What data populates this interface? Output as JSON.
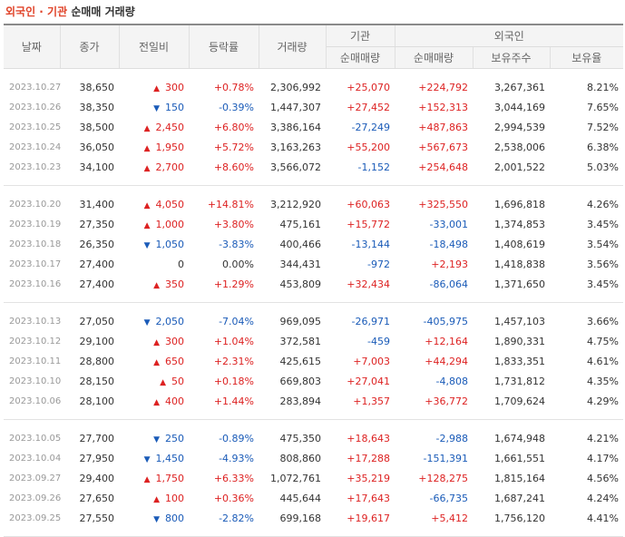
{
  "title": {
    "part1": "외국인 · 기관",
    "part2": "순매매 거래량"
  },
  "headers": {
    "date": "날짜",
    "close": "종가",
    "change": "전일비",
    "rate": "등락률",
    "volume": "거래량",
    "inst": "기관",
    "foreign": "외국인",
    "inst_net": "순매매량",
    "foreign_net": "순매매량",
    "holding": "보유주수",
    "hold_ratio": "보유율"
  },
  "groups": [
    [
      [
        "2023.10.27",
        "38,650",
        "up",
        "300",
        "+0.78%",
        "2,306,992",
        "+25,070",
        "+224,792",
        "3,267,361",
        "8.21%"
      ],
      [
        "2023.10.26",
        "38,350",
        "down",
        "150",
        "-0.39%",
        "1,447,307",
        "+27,452",
        "+152,313",
        "3,044,169",
        "7.65%"
      ],
      [
        "2023.10.25",
        "38,500",
        "up",
        "2,450",
        "+6.80%",
        "3,386,164",
        "-27,249",
        "+487,863",
        "2,994,539",
        "7.52%"
      ],
      [
        "2023.10.24",
        "36,050",
        "up",
        "1,950",
        "+5.72%",
        "3,163,263",
        "+55,200",
        "+567,673",
        "2,538,006",
        "6.38%"
      ],
      [
        "2023.10.23",
        "34,100",
        "up",
        "2,700",
        "+8.60%",
        "3,566,072",
        "-1,152",
        "+254,648",
        "2,001,522",
        "5.03%"
      ]
    ],
    [
      [
        "2023.10.20",
        "31,400",
        "up",
        "4,050",
        "+14.81%",
        "3,212,920",
        "+60,063",
        "+325,550",
        "1,696,818",
        "4.26%"
      ],
      [
        "2023.10.19",
        "27,350",
        "up",
        "1,000",
        "+3.80%",
        "475,161",
        "+15,772",
        "-33,001",
        "1,374,853",
        "3.45%"
      ],
      [
        "2023.10.18",
        "26,350",
        "down",
        "1,050",
        "-3.83%",
        "400,466",
        "-13,144",
        "-18,498",
        "1,408,619",
        "3.54%"
      ],
      [
        "2023.10.17",
        "27,400",
        "flat",
        "0",
        "0.00%",
        "344,431",
        "-972",
        "+2,193",
        "1,418,838",
        "3.56%"
      ],
      [
        "2023.10.16",
        "27,400",
        "up",
        "350",
        "+1.29%",
        "453,809",
        "+32,434",
        "-86,064",
        "1,371,650",
        "3.45%"
      ]
    ],
    [
      [
        "2023.10.13",
        "27,050",
        "down",
        "2,050",
        "-7.04%",
        "969,095",
        "-26,971",
        "-405,975",
        "1,457,103",
        "3.66%"
      ],
      [
        "2023.10.12",
        "29,100",
        "up",
        "300",
        "+1.04%",
        "372,581",
        "-459",
        "+12,164",
        "1,890,331",
        "4.75%"
      ],
      [
        "2023.10.11",
        "28,800",
        "up",
        "650",
        "+2.31%",
        "425,615",
        "+7,003",
        "+44,294",
        "1,833,351",
        "4.61%"
      ],
      [
        "2023.10.10",
        "28,150",
        "up",
        "50",
        "+0.18%",
        "669,803",
        "+27,041",
        "-4,808",
        "1,731,812",
        "4.35%"
      ],
      [
        "2023.10.06",
        "28,100",
        "up",
        "400",
        "+1.44%",
        "283,894",
        "+1,357",
        "+36,772",
        "1,709,624",
        "4.29%"
      ]
    ],
    [
      [
        "2023.10.05",
        "27,700",
        "down",
        "250",
        "-0.89%",
        "475,350",
        "+18,643",
        "-2,988",
        "1,674,948",
        "4.21%"
      ],
      [
        "2023.10.04",
        "27,950",
        "down",
        "1,450",
        "-4.93%",
        "808,860",
        "+17,288",
        "-151,391",
        "1,661,551",
        "4.17%"
      ],
      [
        "2023.09.27",
        "29,400",
        "up",
        "1,750",
        "+6.33%",
        "1,072,761",
        "+35,219",
        "+128,275",
        "1,815,164",
        "4.56%"
      ],
      [
        "2023.09.26",
        "27,650",
        "up",
        "100",
        "+0.36%",
        "445,644",
        "+17,643",
        "-66,735",
        "1,687,241",
        "4.24%"
      ],
      [
        "2023.09.25",
        "27,550",
        "down",
        "800",
        "-2.82%",
        "699,168",
        "+19,617",
        "+5,412",
        "1,756,120",
        "4.41%"
      ]
    ]
  ],
  "colors": {
    "up": "#dd2222",
    "down": "#1a5bb8",
    "title_red": "#e0442a"
  }
}
